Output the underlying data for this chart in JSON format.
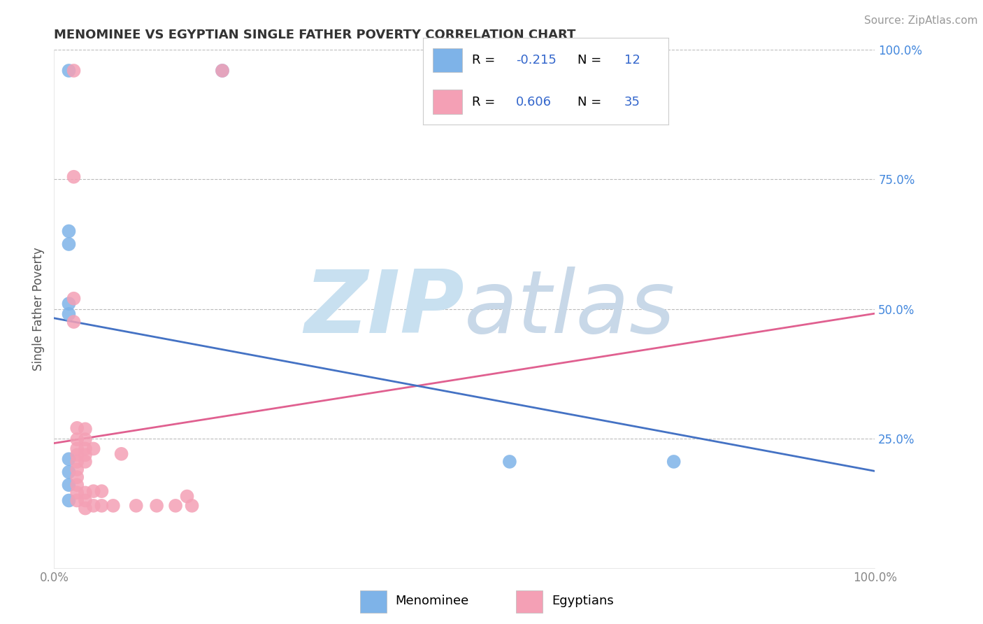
{
  "title": "MENOMINEE VS EGYPTIAN SINGLE FATHER POVERTY CORRELATION CHART",
  "source_text": "Source: ZipAtlas.com",
  "ylabel": "Single Father Poverty",
  "xlim": [
    0.0,
    1.0
  ],
  "ylim": [
    0.0,
    1.0
  ],
  "xtick_labels": [
    "0.0%",
    "",
    "",
    "",
    "100.0%"
  ],
  "xtick_vals": [
    0.0,
    0.25,
    0.5,
    0.75,
    1.0
  ],
  "ytick_labels": [
    "25.0%",
    "50.0%",
    "75.0%",
    "100.0%"
  ],
  "ytick_vals": [
    0.25,
    0.5,
    0.75,
    1.0
  ],
  "menominee_color": "#7EB3E8",
  "egyptian_color": "#F4A0B5",
  "menominee_line_color": "#4472C4",
  "egyptian_line_color": "#E06090",
  "background_color": "#FFFFFF",
  "grid_color": "#BBBBBB",
  "watermark_zip_color": "#C8E0F0",
  "watermark_atlas_color": "#C8D8E8",
  "legend_value_color": "#3366CC",
  "title_color": "#333333",
  "source_color": "#999999",
  "ytick_color": "#4488DD",
  "xtick_color": "#888888",
  "menominee_points": [
    [
      0.018,
      0.96
    ],
    [
      0.205,
      0.96
    ],
    [
      0.018,
      0.65
    ],
    [
      0.018,
      0.625
    ],
    [
      0.018,
      0.51
    ],
    [
      0.018,
      0.49
    ],
    [
      0.018,
      0.21
    ],
    [
      0.018,
      0.185
    ],
    [
      0.018,
      0.16
    ],
    [
      0.018,
      0.13
    ],
    [
      0.555,
      0.205
    ],
    [
      0.755,
      0.205
    ]
  ],
  "egyptian_points": [
    [
      0.024,
      0.96
    ],
    [
      0.024,
      0.755
    ],
    [
      0.024,
      0.52
    ],
    [
      0.024,
      0.475
    ],
    [
      0.028,
      0.27
    ],
    [
      0.028,
      0.248
    ],
    [
      0.028,
      0.23
    ],
    [
      0.028,
      0.218
    ],
    [
      0.028,
      0.205
    ],
    [
      0.028,
      0.19
    ],
    [
      0.028,
      0.175
    ],
    [
      0.028,
      0.16
    ],
    [
      0.028,
      0.145
    ],
    [
      0.028,
      0.13
    ],
    [
      0.038,
      0.268
    ],
    [
      0.038,
      0.248
    ],
    [
      0.038,
      0.23
    ],
    [
      0.038,
      0.218
    ],
    [
      0.038,
      0.205
    ],
    [
      0.038,
      0.145
    ],
    [
      0.038,
      0.13
    ],
    [
      0.038,
      0.115
    ],
    [
      0.048,
      0.23
    ],
    [
      0.048,
      0.148
    ],
    [
      0.048,
      0.12
    ],
    [
      0.058,
      0.148
    ],
    [
      0.058,
      0.12
    ],
    [
      0.072,
      0.12
    ],
    [
      0.082,
      0.22
    ],
    [
      0.1,
      0.12
    ],
    [
      0.125,
      0.12
    ],
    [
      0.148,
      0.12
    ],
    [
      0.162,
      0.138
    ],
    [
      0.168,
      0.12
    ],
    [
      0.205,
      0.96
    ]
  ]
}
